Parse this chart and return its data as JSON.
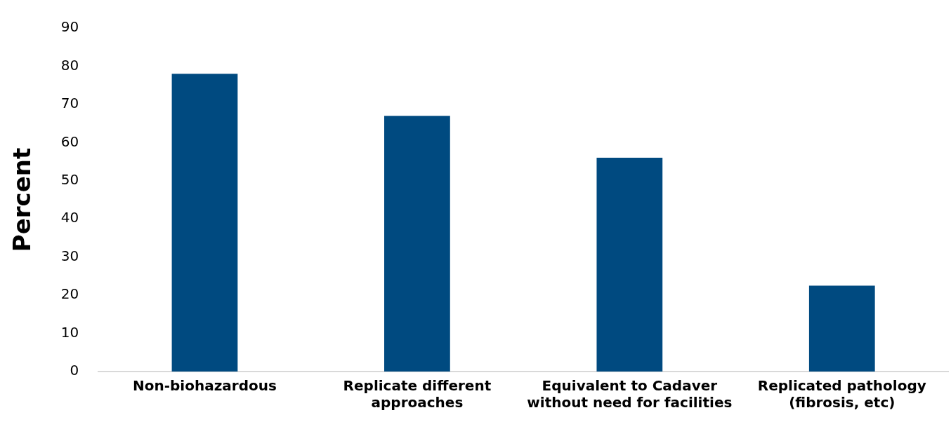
{
  "chart_data": {
    "type": "bar",
    "ylabel": "Percent",
    "categories": [
      "Non-biohazardous",
      "Replicate different approaches",
      "Equivalent to Cadaver without need for facilities",
      "Replicated pathology (fibrosis, etc)"
    ],
    "values": [
      78,
      67,
      56,
      22.5
    ],
    "color": "#004a80",
    "ylim": [
      0,
      90
    ],
    "yticks": [
      0,
      10,
      20,
      30,
      40,
      50,
      60,
      70,
      80,
      90
    ],
    "grid": false,
    "legend": false
  }
}
